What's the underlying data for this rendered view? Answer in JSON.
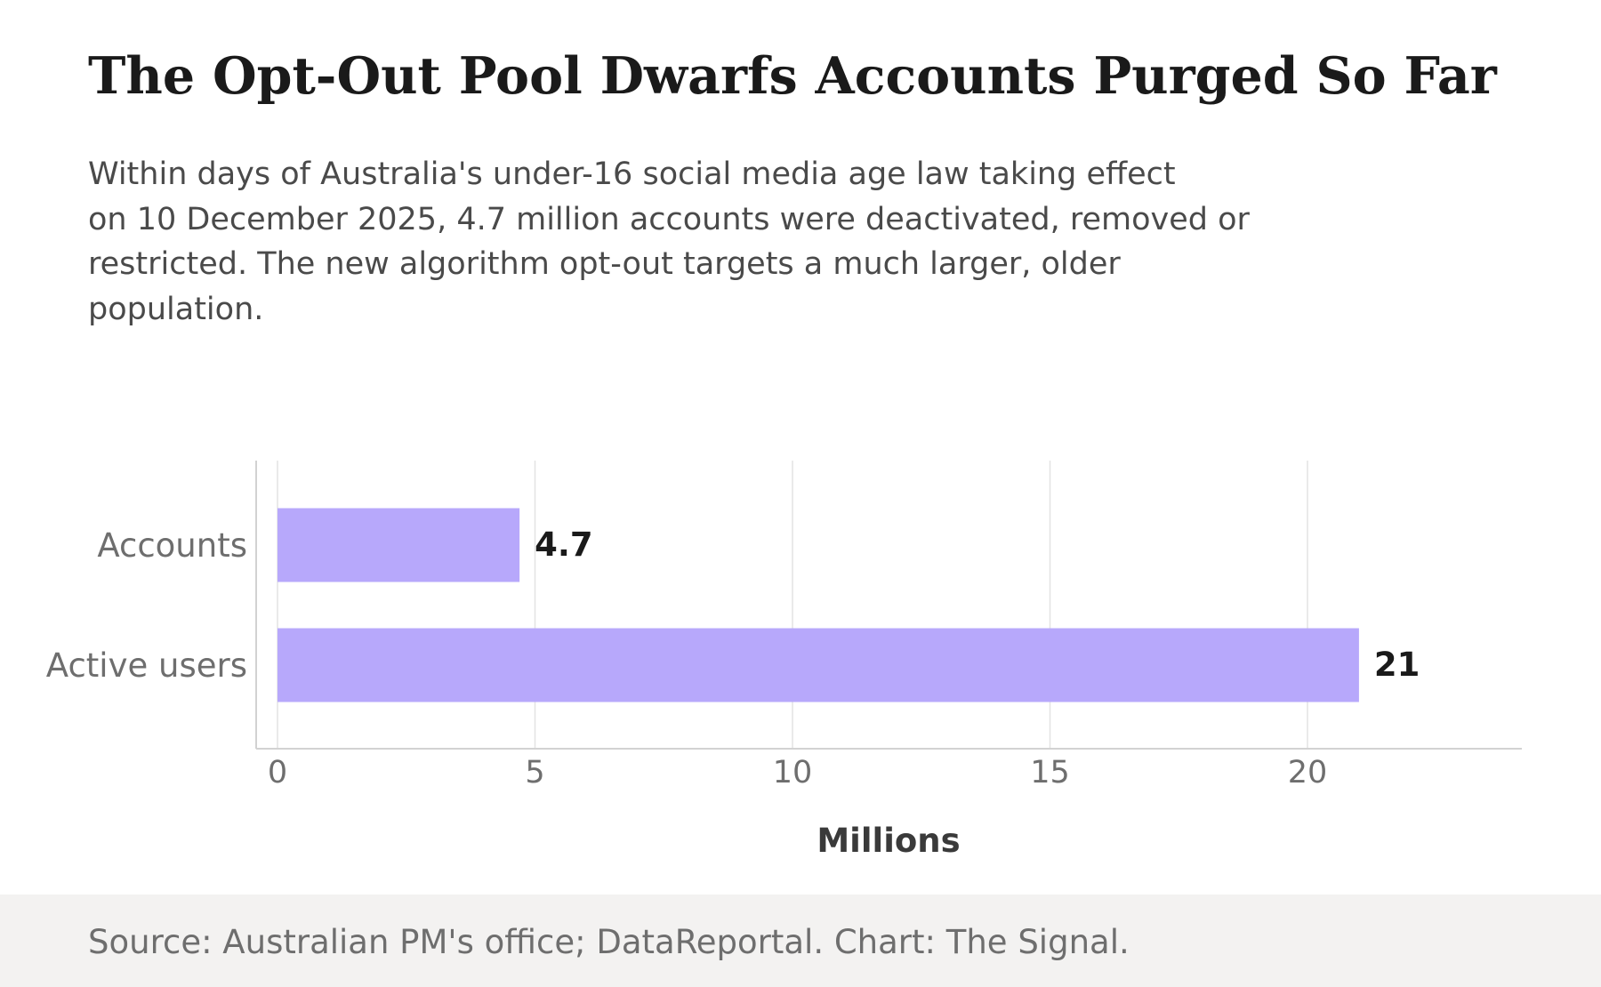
{
  "header": {
    "title": "The Opt-Out Pool Dwarfs Accounts Purged So Far",
    "subtitle_lines": [
      "Within days of Australia's under-16 social media age law taking effect",
      "on 10 December 2025, 4.7 million accounts were deactivated, removed or",
      "restricted. The new algorithm opt-out targets a much larger, older",
      "population."
    ]
  },
  "chart_data": {
    "type": "bar",
    "orientation": "horizontal",
    "categories": [
      "Accounts",
      "Active users"
    ],
    "values": [
      4.7,
      21
    ],
    "value_labels": [
      "4.7",
      "21"
    ],
    "xlabel": "Millions",
    "ylabel": "",
    "xlim": [
      -0.8,
      24.2
    ],
    "xticks": [
      0,
      5,
      10,
      15,
      20
    ],
    "xtick_labels": [
      "0",
      "5",
      "10",
      "15",
      "20"
    ],
    "grid": "vertical",
    "bar_color": "#b7a8fb",
    "gridline_color": "#e3e3e3",
    "axis_color": "#d2d2d2"
  },
  "footer": {
    "source": "Source: Australian PM's office; DataReportal. Chart: The Signal."
  }
}
